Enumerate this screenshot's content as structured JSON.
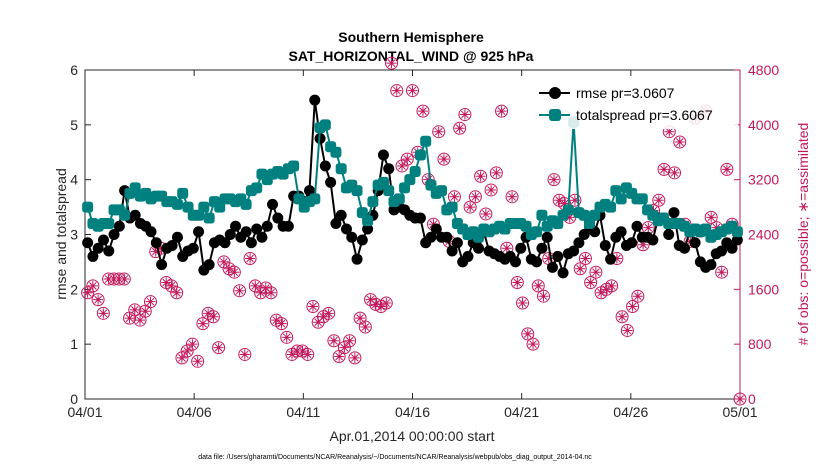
{
  "chart_data": {
    "type": "line",
    "title": "Southern Hemisphere",
    "subtitle": "SAT_HORIZONTAL_WIND @ 925 hPa",
    "xlabel": "Apr.01,2014 00:00:00 start",
    "ylabel": "rmse and totalspread",
    "ylabel_right": "# of obs: o=possible; ∗=assimilated",
    "x_ticks": [
      "04/01",
      "04/06",
      "04/11",
      "04/16",
      "04/21",
      "04/26",
      "05/01"
    ],
    "y_ticks": [
      "0",
      "1",
      "2",
      "3",
      "4",
      "5",
      "6"
    ],
    "y2_ticks": [
      "0",
      "800",
      "1600",
      "2400",
      "3200",
      "4000",
      "4800"
    ],
    "xlim": [
      0,
      30
    ],
    "ylim": [
      0,
      6
    ],
    "y2lim": [
      0,
      4800
    ],
    "grid": false,
    "legend_position": "top-right",
    "footnote": "data file: /Users/gharamti/Documents/NCAR/Reanalysis/~/Documents/NCAR/Reanalysis/webpub/obs_diag_output_2014-04.nc",
    "colors": {
      "rmse": "#000000",
      "totalspread": "#00807f",
      "obs": "#c2185b"
    },
    "series": [
      {
        "name": "rmse pr=3.0607",
        "values": [
          2.85,
          2.6,
          2.75,
          2.9,
          2.7,
          3.0,
          3.15,
          3.8,
          3.3,
          3.35,
          3.2,
          3.15,
          3.05,
          2.85,
          2.45,
          2.75,
          2.8,
          2.95,
          2.6,
          2.7,
          2.75,
          3.05,
          2.35,
          2.45,
          2.85,
          2.9,
          2.85,
          3.0,
          3.15,
          2.95,
          3.05,
          2.85,
          3.1,
          2.95,
          3.15,
          3.55,
          3.3,
          3.15,
          3.15,
          3.7,
          3.7,
          3.6,
          3.8,
          5.45,
          4.75,
          4.25,
          3.95,
          3.2,
          3.35,
          3.1,
          2.95,
          2.55,
          2.9,
          3.1,
          3.35,
          3.8,
          4.45,
          4.2,
          3.45,
          3.5,
          3.45,
          3.35,
          3.3,
          3.3,
          2.85,
          2.95,
          3.1,
          2.95,
          2.95,
          2.7,
          2.85,
          2.5,
          2.6,
          2.85,
          2.75,
          3.05,
          2.7,
          2.65,
          2.6,
          2.55,
          2.6,
          2.5,
          2.75,
          2.95,
          2.55,
          2.5,
          2.75,
          2.95,
          2.4,
          2.6,
          2.3,
          2.65,
          2.7,
          2.85,
          3.0,
          3.15,
          3.05,
          3.35,
          2.8,
          2.55,
          2.95,
          3.05,
          2.8,
          2.85,
          3.15,
          2.95,
          2.95,
          2.9,
          3.3,
          3.3,
          3.0,
          3.4,
          2.8,
          2.75,
          3.05,
          2.85,
          2.5,
          2.4,
          2.45,
          2.65,
          2.7,
          2.85,
          2.75,
          2.9
        ]
      },
      {
        "name": "totalspread pr=3.6067",
        "values": [
          3.5,
          3.2,
          3.15,
          3.2,
          3.2,
          3.45,
          3.45,
          3.35,
          3.75,
          3.85,
          3.7,
          3.75,
          3.65,
          3.7,
          3.7,
          3.6,
          3.6,
          3.55,
          3.75,
          3.5,
          3.35,
          3.35,
          3.5,
          3.3,
          3.6,
          3.5,
          3.65,
          3.65,
          3.6,
          3.65,
          3.55,
          3.8,
          3.85,
          4.1,
          4.0,
          4.1,
          4.15,
          4.1,
          4.2,
          4.25,
          3.65,
          3.5,
          3.6,
          3.65,
          4.95,
          5.0,
          4.6,
          4.5,
          4.2,
          3.85,
          3.9,
          3.8,
          3.4,
          3.25,
          3.6,
          3.9,
          3.95,
          3.8,
          3.6,
          3.65,
          3.85,
          4.0,
          4.15,
          4.45,
          4.7,
          3.9,
          3.75,
          3.8,
          3.45,
          3.5,
          3.2,
          3.1,
          3.0,
          3.05,
          2.95,
          3.1,
          3.05,
          3.1,
          3.15,
          3.1,
          3.2,
          3.2,
          3.2,
          3.15,
          3.0,
          3.05,
          3.35,
          3.15,
          3.25,
          3.2,
          3.35,
          3.45,
          5.05,
          3.4,
          3.35,
          3.2,
          3.35,
          3.5,
          3.55,
          3.5,
          3.8,
          3.65,
          3.85,
          3.75,
          3.65,
          3.65,
          3.45,
          3.35,
          3.25,
          3.3,
          3.2,
          3.2,
          3.2,
          3.15,
          3.05,
          3.1,
          3.05,
          3.1,
          2.95,
          3.0,
          3.05,
          3.1,
          3.15,
          3.05
        ]
      },
      {
        "name": "possible",
        "marker": "circle",
        "values": [
          1550,
          1650,
          1450,
          1250,
          1750,
          1750,
          1750,
          1750,
          1180,
          1300,
          1150,
          1280,
          1420,
          2150,
          2200,
          1700,
          1650,
          1550,
          600,
          700,
          800,
          550,
          1100,
          1250,
          1200,
          750,
          2000,
          1900,
          1850,
          1580,
          650,
          2050,
          1650,
          1550,
          1620,
          1550,
          1150,
          1100,
          900,
          650,
          700,
          700,
          650,
          1350,
          1120,
          1200,
          1250,
          850,
          620,
          750,
          850,
          600,
          1180,
          1050,
          1450,
          1380,
          1350,
          1400,
          4900,
          4500,
          3400,
          3500,
          4500,
          3600,
          4200,
          3200,
          2550,
          3900,
          3500,
          2300,
          2950,
          3950,
          4150,
          2800,
          2950,
          3250,
          2700,
          3050,
          3300,
          4200,
          2200,
          2950,
          1700,
          1400,
          950,
          800,
          1650,
          1500,
          2050,
          3200,
          2900,
          2850,
          2650,
          2900,
          1900,
          2050,
          1700,
          1850,
          1550,
          1600,
          1650,
          2050,
          1200,
          1000,
          1350,
          1500,
          2250,
          2500,
          2750,
          2900,
          3350,
          3900,
          3300,
          3750,
          2550,
          2300,
          4100,
          2450,
          4200,
          2650,
          2500,
          1850,
          3350,
          2550,
          0
        ]
      },
      {
        "name": "assimilated",
        "marker": "star",
        "values": [
          1550,
          1650,
          1450,
          1250,
          1750,
          1750,
          1750,
          1750,
          1180,
          1300,
          1150,
          1280,
          1420,
          2150,
          2200,
          1700,
          1650,
          1550,
          600,
          700,
          800,
          550,
          1100,
          1250,
          1200,
          750,
          2000,
          1900,
          1850,
          1580,
          650,
          2050,
          1650,
          1550,
          1620,
          1550,
          1150,
          1100,
          900,
          650,
          700,
          700,
          650,
          1350,
          1120,
          1200,
          1250,
          850,
          620,
          750,
          850,
          600,
          1180,
          1050,
          1450,
          1380,
          1350,
          1400,
          4900,
          4500,
          3400,
          3500,
          4500,
          3600,
          4200,
          3200,
          2550,
          3900,
          3500,
          2300,
          2950,
          3950,
          4150,
          2800,
          2950,
          3250,
          2700,
          3050,
          3300,
          4200,
          2200,
          2950,
          1700,
          1400,
          950,
          800,
          1650,
          1500,
          2050,
          3200,
          2900,
          2850,
          2650,
          2900,
          1900,
          2050,
          1700,
          1850,
          1550,
          1600,
          1650,
          2050,
          1200,
          1000,
          1350,
          1500,
          2250,
          2500,
          2750,
          2900,
          3350,
          3900,
          3300,
          3750,
          2550,
          2300,
          4100,
          2450,
          4200,
          2650,
          2500,
          1850,
          3350,
          2550,
          0
        ]
      }
    ]
  }
}
